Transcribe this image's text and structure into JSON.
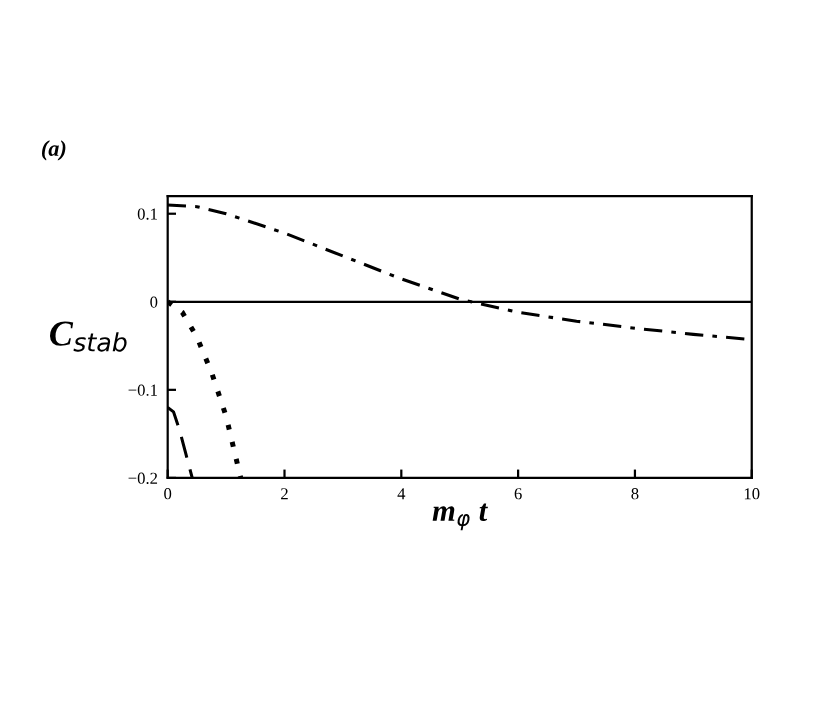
{
  "chart_data": {
    "type": "line",
    "xlabel": "m$_{φ}$ t",
    "ylabel": "C$_{stab}$",
    "annotations": [
      "(a)"
    ],
    "series": [
      {
        "color": "#000000",
        "line_style": "dashdot",
        "x": [
          0,
          0.5,
          1,
          2,
          3,
          4,
          5,
          6,
          7,
          8,
          9,
          10
        ],
        "values": [
          0.11,
          0.108,
          0.1,
          0.078,
          0.052,
          0.026,
          0.003,
          -0.012,
          -0.022,
          -0.03,
          -0.037,
          -0.043
        ]
      },
      {
        "color": "#000000",
        "line_style": "dotted",
        "x": [
          0,
          0.25,
          0.5,
          0.75,
          1.0,
          1.25
        ],
        "values": [
          0,
          -0.012,
          -0.04,
          -0.08,
          -0.13,
          -0.2
        ]
      },
      {
        "color": "#000000",
        "line_style": "dashed",
        "x": [
          0,
          0.1,
          0.2,
          0.3,
          0.42
        ],
        "values": [
          -0.12,
          -0.125,
          -0.145,
          -0.17,
          -0.2
        ]
      }
    ],
    "ref_lines": [
      {
        "axis": "y",
        "value": 0,
        "color": "#000000",
        "line_style": "solid"
      }
    ],
    "xlim": [
      0,
      10
    ],
    "ylim": [
      -0.2,
      0.12
    ],
    "xticks": [
      0,
      2,
      4,
      6,
      8,
      10
    ],
    "yticks": [
      -0.2,
      -0.1,
      0,
      0.1
    ],
    "grid": false,
    "legend": false
  }
}
